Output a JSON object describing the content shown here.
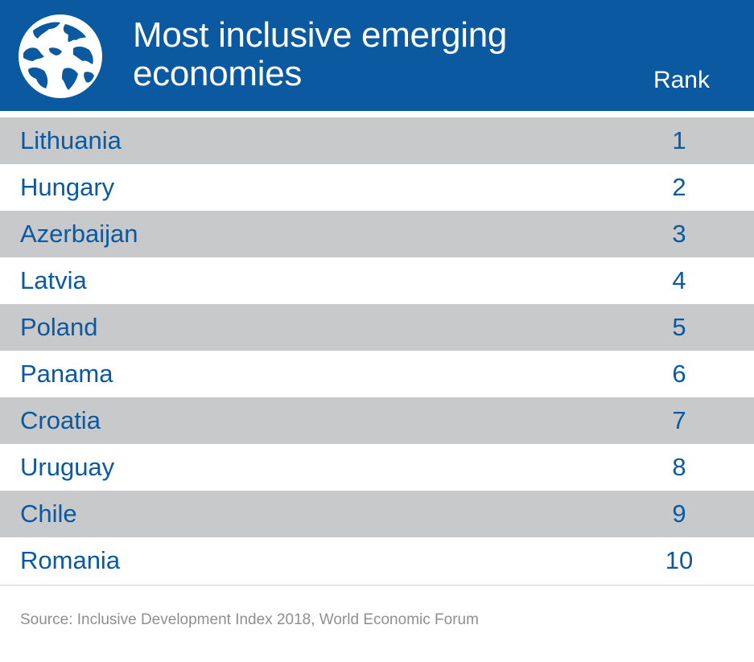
{
  "header": {
    "title_line1": "Most inclusive emerging",
    "title_line2": "economies",
    "rank_label": "Rank",
    "globe_icon": "globe-icon"
  },
  "colors": {
    "brand_blue": "#0b59a0",
    "row_shade": "#c8c9cb",
    "source_text": "#8e8f92"
  },
  "chart_data": {
    "type": "table",
    "title": "Most inclusive emerging economies",
    "columns": [
      "",
      "Rank"
    ],
    "rows": [
      {
        "country": "Lithuania",
        "rank": "1"
      },
      {
        "country": "Hungary",
        "rank": "2"
      },
      {
        "country": "Azerbaijan",
        "rank": "3"
      },
      {
        "country": "Latvia",
        "rank": "4"
      },
      {
        "country": "Poland",
        "rank": "5"
      },
      {
        "country": "Panama",
        "rank": "6"
      },
      {
        "country": "Croatia",
        "rank": "7"
      },
      {
        "country": "Uruguay",
        "rank": "8"
      },
      {
        "country": "Chile",
        "rank": "9"
      },
      {
        "country": "Romania",
        "rank": "10"
      }
    ]
  },
  "footer": {
    "source": "Source: Inclusive Development Index 2018, World Economic Forum"
  }
}
